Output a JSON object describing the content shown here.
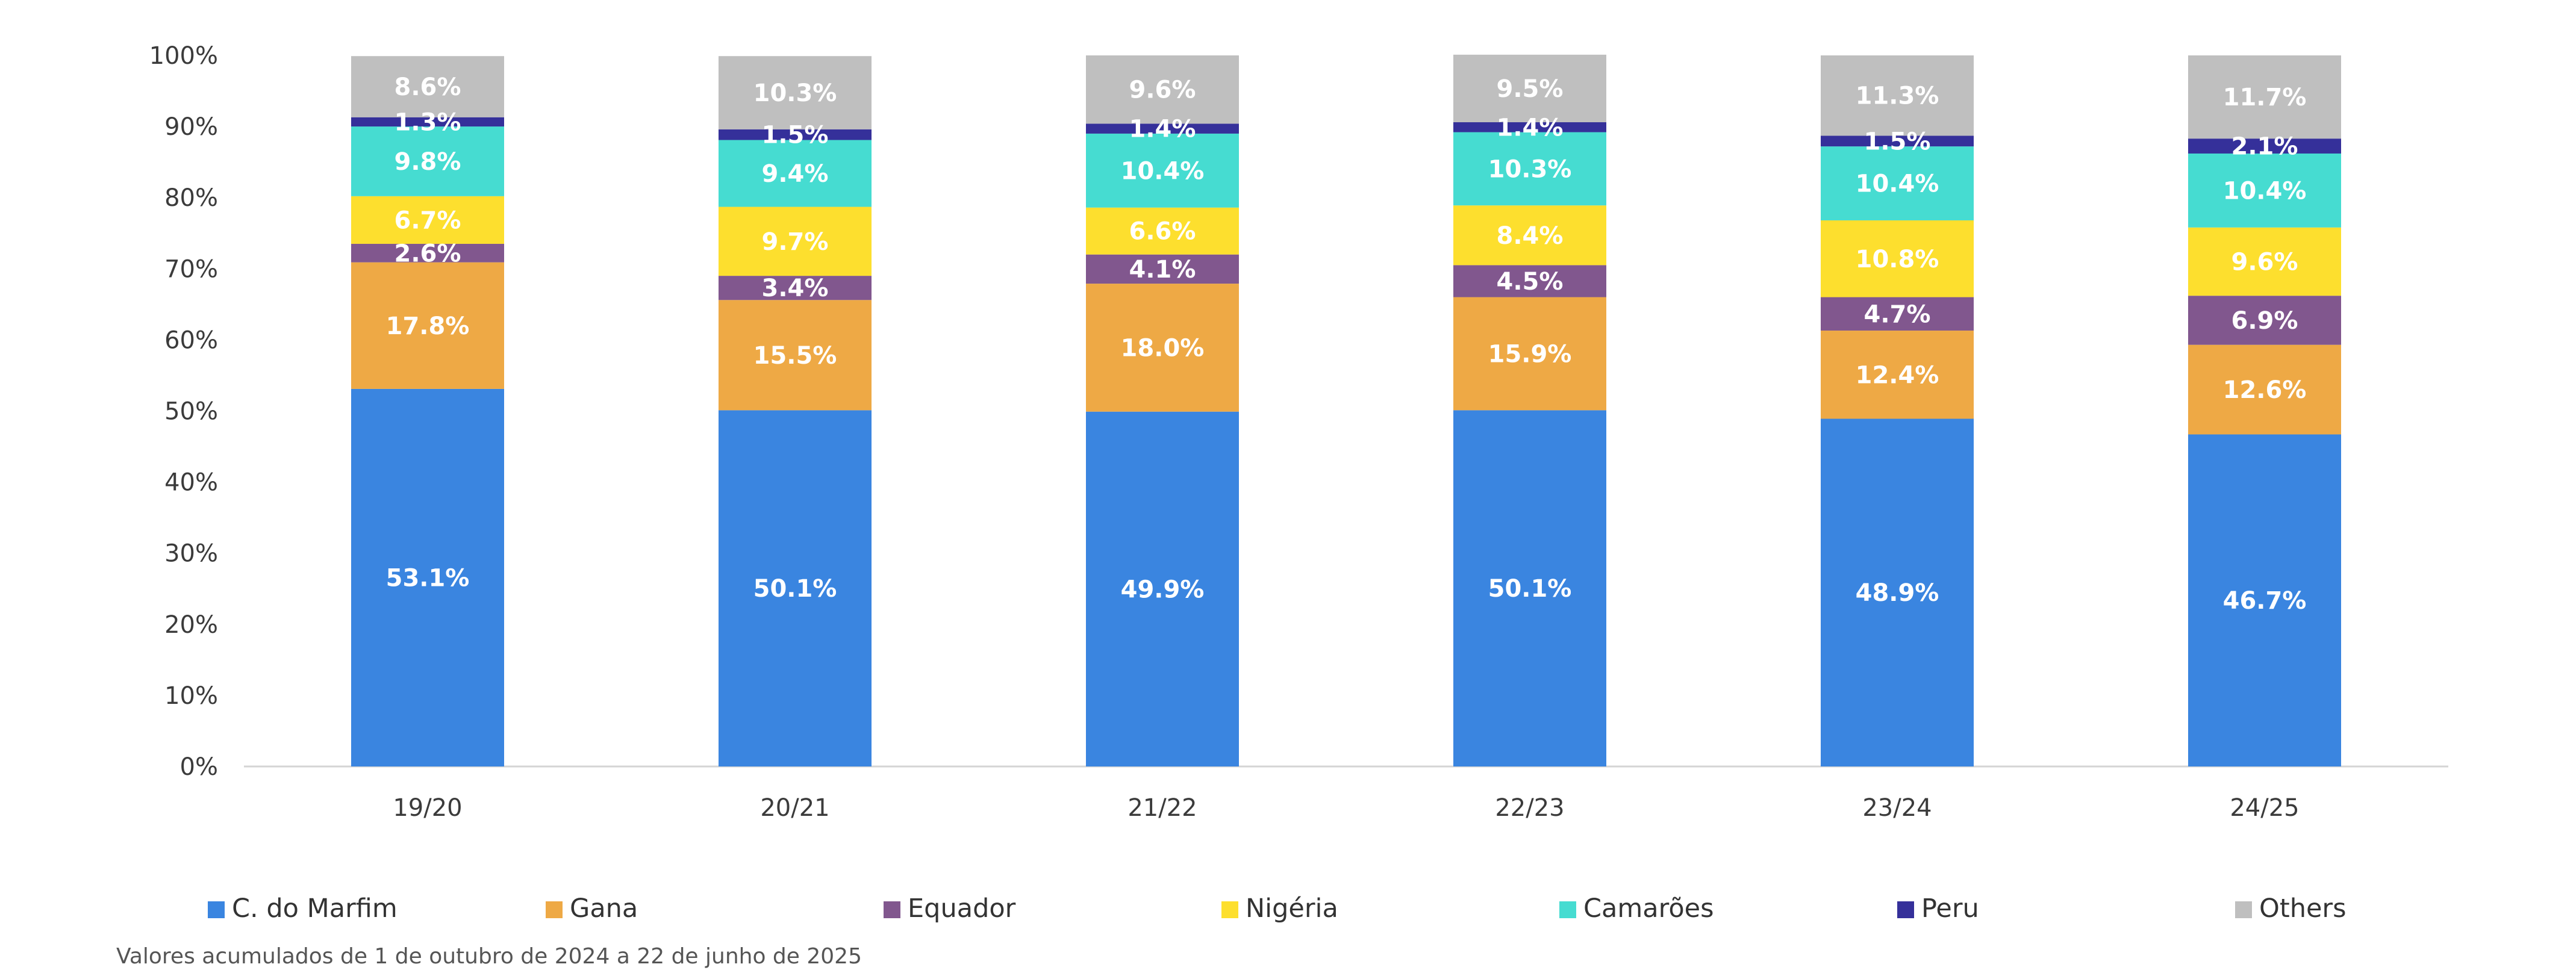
{
  "chart_data": {
    "type": "bar",
    "stacked": true,
    "categories": [
      "19/20",
      "20/21",
      "21/22",
      "22/23",
      "23/24",
      "24/25"
    ],
    "ylim": [
      0,
      100
    ],
    "yticks": [
      "0%",
      "10%",
      "20%",
      "30%",
      "40%",
      "50%",
      "60%",
      "70%",
      "80%",
      "90%",
      "100%"
    ],
    "grid": false,
    "legend_position": "bottom",
    "series": [
      {
        "name": "C. do Marfim",
        "color": "#3A85E0",
        "values": [
          53.1,
          50.1,
          49.9,
          50.1,
          48.9,
          46.7
        ],
        "labels": [
          "53.1%",
          "50.1%",
          "49.9%",
          "50.1%",
          "48.9%",
          "46.7%"
        ]
      },
      {
        "name": "Gana",
        "color": "#EEA945",
        "values": [
          17.8,
          15.5,
          18.0,
          15.9,
          12.4,
          12.6
        ],
        "labels": [
          "17.8%",
          "15.5%",
          "18.0%",
          "15.9%",
          "12.4%",
          "12.6%"
        ]
      },
      {
        "name": "Equador",
        "color": "#81578E",
        "values": [
          2.6,
          3.4,
          4.1,
          4.5,
          4.7,
          6.9
        ],
        "labels": [
          "2.6%",
          "3.4%",
          "4.1%",
          "4.5%",
          "4.7%",
          "6.9%"
        ]
      },
      {
        "name": "Nigéria",
        "color": "#FDDF2E",
        "values": [
          6.7,
          9.7,
          6.6,
          8.4,
          10.8,
          9.6
        ],
        "labels": [
          "6.7%",
          "9.7%",
          "6.6%",
          "8.4%",
          "10.8%",
          "9.6%"
        ]
      },
      {
        "name": "Camarões",
        "color": "#46DCD1",
        "values": [
          9.8,
          9.4,
          10.4,
          10.3,
          10.4,
          10.4
        ],
        "labels": [
          "9.8%",
          "9.4%",
          "10.4%",
          "10.3%",
          "10.4%",
          "10.4%"
        ]
      },
      {
        "name": "Peru",
        "color": "#35309A",
        "values": [
          1.3,
          1.5,
          1.4,
          1.4,
          1.5,
          2.1
        ],
        "labels": [
          "1.3%",
          "1.5%",
          "1.4%",
          "1.4%",
          "1.5%",
          "2.1%"
        ]
      },
      {
        "name": "Others",
        "color": "#BFBFBF",
        "values": [
          8.6,
          10.3,
          9.6,
          9.5,
          11.3,
          11.7
        ],
        "labels": [
          "8.6%",
          "10.3%",
          "9.6%",
          "9.5%",
          "11.3%",
          "11.7%"
        ]
      }
    ]
  },
  "footnote": "Valores acumulados de 1 de outubro de 2024 a 22 de junho de 2025"
}
